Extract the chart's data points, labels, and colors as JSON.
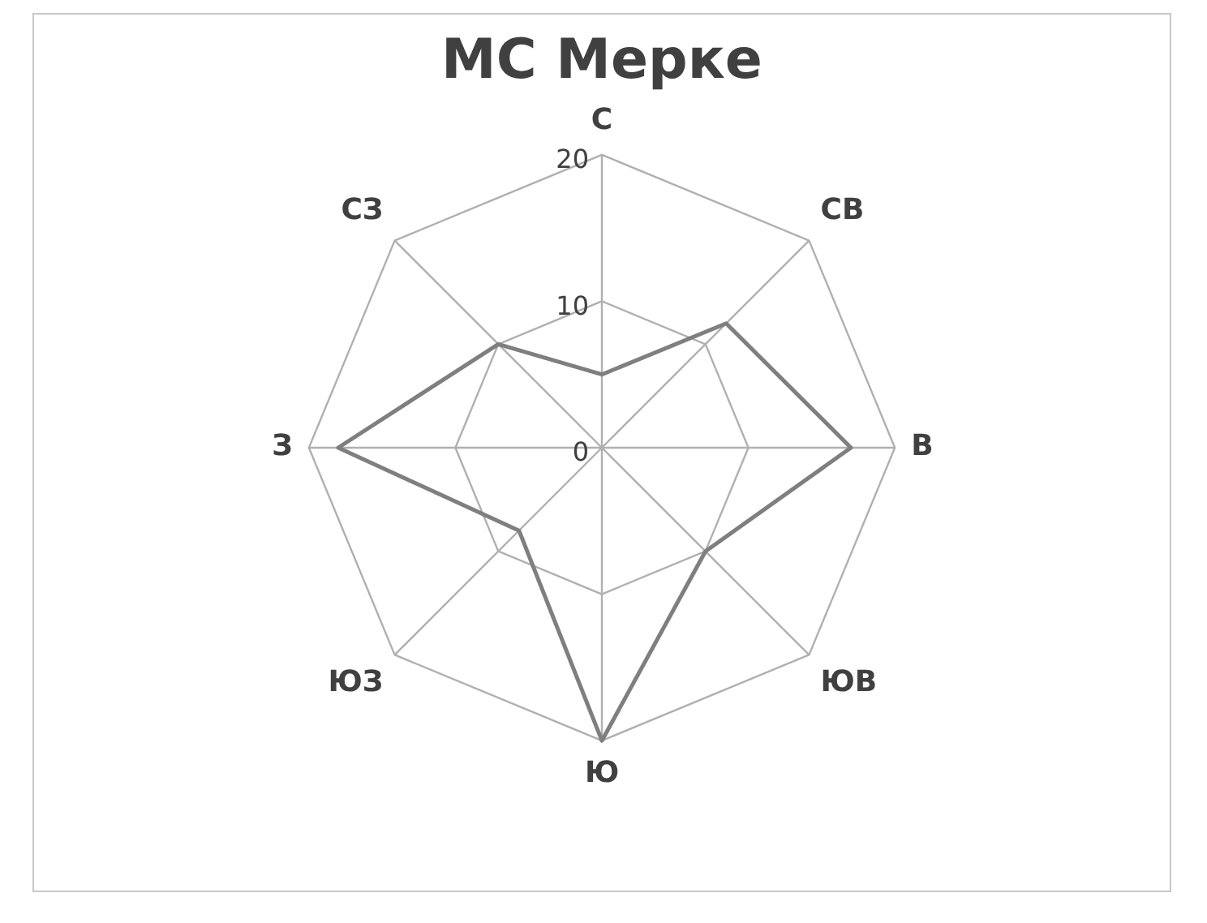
{
  "chart_data": {
    "type": "radar",
    "title": "МС Мерке",
    "categories": [
      "С",
      "СВ",
      "В",
      "ЮВ",
      "Ю",
      "ЮЗ",
      "З",
      "СЗ"
    ],
    "series": [
      {
        "color": "#7f7f7f",
        "values": [
          5,
          12,
          17,
          10,
          20,
          8,
          18,
          10
        ]
      }
    ],
    "ylim": [
      0,
      20
    ],
    "yticks": [
      0,
      10,
      20
    ],
    "grid": true,
    "legend": false,
    "marker": "none"
  }
}
